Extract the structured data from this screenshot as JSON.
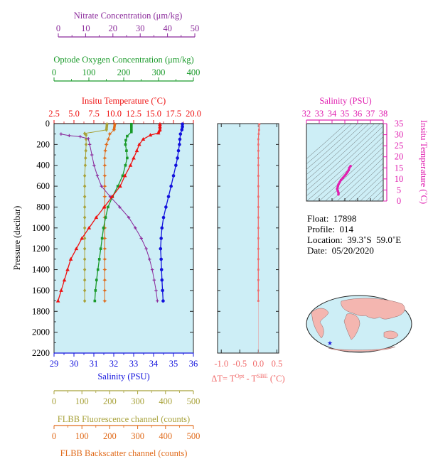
{
  "colors": {
    "plot_bg": "#cdeef6",
    "nitrate": "#8b2a9b",
    "oxygen": "#1a9a2a",
    "temperature": "#ee1111",
    "salinity": "#1111dd",
    "fluorescence": "#a8a23a",
    "backscatter": "#e06a1a",
    "delta_t": "#f06a6a",
    "ts": "#e020b0"
  },
  "info": {
    "float": "Float:  17898",
    "profile": "Profile:  014",
    "location": "Location:  39.3˚S  59.0˚E",
    "date": "Date:  05/20/2020"
  },
  "chart_data": [
    {
      "type": "line",
      "panel": "profiles",
      "ylabel": "Pressure (decibar)",
      "ylim": [
        2200,
        0
      ],
      "yticks": [
        0,
        200,
        400,
        600,
        800,
        1000,
        1200,
        1400,
        1600,
        1800,
        2000,
        2200
      ],
      "axes": [
        {
          "key": "nitrate",
          "label": "Nitrate Concentration (μm/kg)",
          "range": [
            0,
            50
          ],
          "ticks": [
            0,
            10,
            20,
            30,
            40,
            50
          ]
        },
        {
          "key": "oxygen",
          "label": "Optode Oxygen Concentration (μm/kg)",
          "range": [
            0,
            400
          ],
          "ticks": [
            0,
            100,
            200,
            300,
            400
          ]
        },
        {
          "key": "temperature",
          "label": "Insitu Temperature (˚C)",
          "range": [
            2.5,
            20.0
          ],
          "ticks": [
            "2.5",
            "5.0",
            "7.5",
            "10.0",
            "12.5",
            "15.0",
            "17.5",
            "20.0"
          ]
        },
        {
          "key": "salinity",
          "label": "Salinity (PSU)",
          "range": [
            29,
            36
          ],
          "ticks": [
            29,
            30,
            31,
            32,
            33,
            34,
            35,
            36
          ]
        },
        {
          "key": "fluorescence",
          "label": "FLBB Fluorescence channel (counts)",
          "range": [
            0,
            500
          ],
          "ticks": [
            0,
            100,
            200,
            300,
            400,
            500
          ]
        },
        {
          "key": "backscatter",
          "label": "FLBB Backscatter channel (counts)",
          "range": [
            0,
            500
          ],
          "ticks": [
            0,
            100,
            200,
            300,
            400,
            500
          ]
        }
      ],
      "series": [
        {
          "key": "temperature",
          "marker": "triangle",
          "points": [
            [
              15.8,
              5
            ],
            [
              15.8,
              30
            ],
            [
              15.8,
              60
            ],
            [
              15.6,
              90
            ],
            [
              14.6,
              110
            ],
            [
              13.7,
              150
            ],
            [
              13.2,
              200
            ],
            [
              12.9,
              260
            ],
            [
              12.5,
              330
            ],
            [
              12.1,
              400
            ],
            [
              11.4,
              500
            ],
            [
              10.8,
              600
            ],
            [
              9.8,
              700
            ],
            [
              8.8,
              800
            ],
            [
              7.8,
              900
            ],
            [
              6.9,
              1000
            ],
            [
              6.0,
              1100
            ],
            [
              5.3,
              1200
            ],
            [
              4.6,
              1300
            ],
            [
              4.2,
              1400
            ],
            [
              3.8,
              1500
            ],
            [
              3.4,
              1600
            ],
            [
              3.0,
              1700
            ]
          ]
        },
        {
          "key": "salinity",
          "marker": "circle",
          "points": [
            [
              35.45,
              5
            ],
            [
              35.45,
              30
            ],
            [
              35.42,
              60
            ],
            [
              35.35,
              100
            ],
            [
              35.32,
              150
            ],
            [
              35.3,
              200
            ],
            [
              35.25,
              260
            ],
            [
              35.2,
              330
            ],
            [
              35.12,
              400
            ],
            [
              35.0,
              500
            ],
            [
              34.88,
              600
            ],
            [
              34.75,
              700
            ],
            [
              34.62,
              800
            ],
            [
              34.5,
              900
            ],
            [
              34.42,
              1000
            ],
            [
              34.38,
              1100
            ],
            [
              34.35,
              1200
            ],
            [
              34.38,
              1300
            ],
            [
              34.4,
              1400
            ],
            [
              34.42,
              1500
            ],
            [
              34.45,
              1600
            ],
            [
              34.48,
              1700
            ]
          ]
        },
        {
          "key": "oxygen",
          "marker": "square",
          "points": [
            [
              222,
              5
            ],
            [
              222,
              30
            ],
            [
              222,
              60
            ],
            [
              222,
              80
            ],
            [
              210,
              120
            ],
            [
              206,
              160
            ],
            [
              205,
              200
            ],
            [
              208,
              260
            ],
            [
              210,
              330
            ],
            [
              205,
              400
            ],
            [
              197,
              500
            ],
            [
              183,
              600
            ],
            [
              168,
              700
            ],
            [
              155,
              800
            ],
            [
              148,
              900
            ],
            [
              142,
              1000
            ],
            [
              138,
              1100
            ],
            [
              134,
              1200
            ],
            [
              130,
              1300
            ],
            [
              126,
              1400
            ],
            [
              122,
              1500
            ],
            [
              119,
              1600
            ],
            [
              117,
              1700
            ]
          ]
        },
        {
          "key": "nitrate",
          "marker": "cross",
          "points": [
            [
              1,
              100
            ],
            [
              4,
              115
            ],
            [
              8,
              125
            ],
            [
              11,
              145
            ],
            [
              11.5,
              200
            ],
            [
              12.3,
              300
            ],
            [
              13.1,
              400
            ],
            [
              14.3,
              500
            ],
            [
              15.8,
              600
            ],
            [
              19,
              700
            ],
            [
              22.5,
              800
            ],
            [
              25.8,
              900
            ],
            [
              28.2,
              1000
            ],
            [
              30.4,
              1100
            ],
            [
              32.2,
              1200
            ],
            [
              33.4,
              1300
            ],
            [
              34.4,
              1400
            ],
            [
              35.1,
              1500
            ],
            [
              35.8,
              1600
            ],
            [
              36.3,
              1700
            ]
          ]
        },
        {
          "key": "fluorescence",
          "marker": "diamond",
          "points": [
            [
              190,
              5
            ],
            [
              188,
              60
            ],
            [
              110,
              95
            ],
            [
              115,
              110
            ],
            [
              115,
              150
            ],
            [
              115,
              200
            ],
            [
              114,
              260
            ],
            [
              113,
              330
            ],
            [
              112,
              400
            ],
            [
              110,
              500
            ],
            [
              110,
              600
            ],
            [
              110,
              700
            ],
            [
              110,
              800
            ],
            [
              110,
              900
            ],
            [
              110,
              1000
            ],
            [
              110,
              1100
            ],
            [
              110,
              1200
            ],
            [
              110,
              1300
            ],
            [
              110,
              1400
            ],
            [
              110,
              1500
            ],
            [
              110,
              1600
            ],
            [
              110,
              1700
            ]
          ]
        },
        {
          "key": "backscatter",
          "marker": "star",
          "points": [
            [
              218,
              5
            ],
            [
              215,
              60
            ],
            [
              200,
              100
            ],
            [
              195,
              150
            ],
            [
              188,
              200
            ],
            [
              184,
              260
            ],
            [
              182,
              330
            ],
            [
              182,
              400
            ],
            [
              182,
              500
            ],
            [
              182,
              600
            ],
            [
              182,
              700
            ],
            [
              182,
              800
            ],
            [
              182,
              900
            ],
            [
              182,
              1000
            ],
            [
              182,
              1100
            ],
            [
              182,
              1200
            ],
            [
              182,
              1300
            ],
            [
              182,
              1400
            ],
            [
              182,
              1500
            ],
            [
              182,
              1600
            ],
            [
              182,
              1700
            ]
          ]
        }
      ]
    },
    {
      "type": "line",
      "panel": "delta-t",
      "xlabel": "ΔT= T",
      "xlabel_sup1": "Opt",
      "xlabel_mid": " - T",
      "xlabel_sup2": "SBE",
      "xlabel_end": " (˚C)",
      "xlim": [
        -1.1,
        0.55
      ],
      "xticks": [
        "-1.0",
        "-0.5",
        "0.0",
        "0.5"
      ],
      "xtick_values": [
        -1.0,
        -0.5,
        0.0,
        0.5
      ],
      "ylim": [
        2200,
        0
      ],
      "points": [
        [
          0.03,
          5
        ],
        [
          0.02,
          60
        ],
        [
          0.01,
          100
        ],
        [
          0.0,
          150
        ],
        [
          0.0,
          200
        ],
        [
          0.0,
          260
        ],
        [
          0.0,
          330
        ],
        [
          0.0,
          400
        ],
        [
          0.0,
          500
        ],
        [
          0.0,
          600
        ],
        [
          0.0,
          700
        ],
        [
          0.0,
          800
        ],
        [
          0.0,
          900
        ],
        [
          0.0,
          1000
        ],
        [
          0.0,
          1100
        ],
        [
          0.0,
          1200
        ],
        [
          0.0,
          1300
        ],
        [
          0.0,
          1400
        ],
        [
          0.0,
          1500
        ],
        [
          0.0,
          1600
        ],
        [
          0.0,
          1700
        ]
      ]
    },
    {
      "type": "scatter",
      "panel": "ts-diagram",
      "xlabel": "Salinity (PSU)",
      "ylabel": "Insitu Temperature (˚C)",
      "xlim": [
        32,
        38
      ],
      "ylim": [
        0,
        35
      ],
      "xticks": [
        32,
        33,
        34,
        35,
        36,
        37,
        38
      ],
      "yticks": [
        0,
        5,
        10,
        15,
        20,
        25,
        30,
        35
      ],
      "points": [
        [
          34.5,
          3.0
        ],
        [
          34.5,
          3.8
        ],
        [
          34.45,
          4.6
        ],
        [
          34.4,
          5.5
        ],
        [
          34.45,
          6.5
        ],
        [
          34.5,
          7.5
        ],
        [
          34.6,
          8.5
        ],
        [
          34.7,
          9.5
        ],
        [
          34.85,
          10.5
        ],
        [
          35.0,
          11.5
        ],
        [
          35.1,
          12.2
        ],
        [
          35.2,
          13.0
        ],
        [
          35.3,
          14.0
        ],
        [
          35.35,
          15.0
        ],
        [
          35.45,
          15.8
        ]
      ]
    }
  ]
}
